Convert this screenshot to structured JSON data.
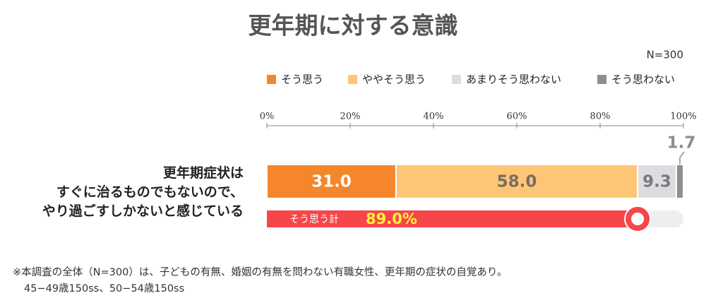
{
  "chart_data": {
    "type": "stacked-bar",
    "title": "更年期に対する意識",
    "note": "N=300",
    "categories": [
      "更年期症状は\nすぐに治るものでもないので、\nやり過ごすしかないと感じている"
    ],
    "series": [
      {
        "name": "そう思う",
        "color": "#f5862b",
        "values": [
          31.0
        ],
        "value_labels": [
          "31.0"
        ],
        "label_color": "#ffffff"
      },
      {
        "name": "ややそう思う",
        "color": "#fdc676",
        "values": [
          58.0
        ],
        "value_labels": [
          "58.0"
        ],
        "label_color": "#7a6d62"
      },
      {
        "name": "あまりそう思わない",
        "color": "#dcdde0",
        "values": [
          9.3
        ],
        "label_color": "#7a7a7a"
      },
      {
        "name": "そう思わない",
        "color": "#8e8e8e",
        "values": [
          1.7
        ],
        "label_color": "#8e8e8e"
      }
    ],
    "total": {
      "label": "そう思う計",
      "values": [
        89.0
      ],
      "value_labels": [
        "89.0%"
      ],
      "color": "#f6464a"
    },
    "xlim": [
      0,
      100
    ],
    "xticks": [
      {
        "value": 0,
        "label": "0%"
      },
      {
        "value": 20,
        "label": "20%"
      },
      {
        "value": 40,
        "label": "40%"
      },
      {
        "value": 60,
        "label": "60%"
      },
      {
        "value": 80,
        "label": "80%"
      },
      {
        "value": 100,
        "label": "100%"
      }
    ],
    "footnotes": [
      "※本調査の全体（N=300）は、子どもの有無、婚姻の有無を問わない有職女性、更年期の症状の自覚あり。",
      "45−49歳150ss、50−54歳150ss"
    ]
  }
}
